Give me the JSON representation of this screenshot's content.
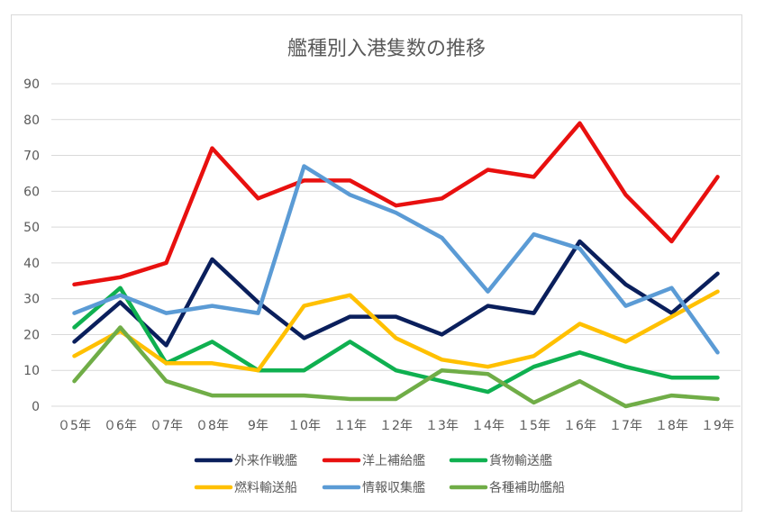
{
  "chart_data": {
    "type": "line",
    "title": "艦種別入港隻数の推移",
    "xlabel": "",
    "ylabel": "",
    "categories": [
      "０5年",
      "０6年",
      "０7年",
      "０8年",
      "9年",
      "１0年",
      "１1年",
      "１2年",
      "１3年",
      "１4年",
      "１5年",
      "１6年",
      "１7年",
      "１8年",
      "１9年"
    ],
    "ylim": [
      0,
      90
    ],
    "yticks": [
      0,
      10,
      20,
      30,
      40,
      50,
      60,
      70,
      80,
      90
    ],
    "grid": true,
    "legend_position": "bottom",
    "series": [
      {
        "name": "外来作戦艦",
        "color": "#0a1f5c",
        "values": [
          18,
          29,
          17,
          41,
          29,
          19,
          25,
          25,
          20,
          28,
          26,
          46,
          34,
          26,
          37
        ]
      },
      {
        "name": "洋上補給艦",
        "color": "#e8100f",
        "values": [
          34,
          36,
          40,
          72,
          58,
          63,
          63,
          56,
          58,
          66,
          64,
          79,
          59,
          46,
          64
        ]
      },
      {
        "name": "貨物輸送艦",
        "color": "#0fb050",
        "values": [
          22,
          33,
          12,
          18,
          10,
          10,
          18,
          10,
          7,
          4,
          11,
          15,
          11,
          8,
          8
        ]
      },
      {
        "name": "燃料輸送船",
        "color": "#ffc000",
        "values": [
          14,
          21,
          12,
          12,
          10,
          28,
          31,
          19,
          13,
          11,
          14,
          23,
          18,
          25,
          32
        ]
      },
      {
        "name": "情報収集艦",
        "color": "#5b9bd5",
        "values": [
          26,
          31,
          26,
          28,
          26,
          67,
          59,
          54,
          47,
          32,
          48,
          44,
          28,
          33,
          15
        ]
      },
      {
        "name": "各種補助艦船",
        "color": "#70ad47",
        "values": [
          7,
          22,
          7,
          3,
          3,
          3,
          2,
          2,
          10,
          9,
          1,
          7,
          0,
          3,
          2
        ]
      }
    ]
  }
}
